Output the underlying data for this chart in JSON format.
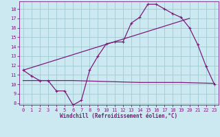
{
  "background_color": "#cce8f0",
  "grid_color": "#a0c8d0",
  "line_color": "#7b1a7b",
  "xlim": [
    -0.5,
    23.5
  ],
  "ylim": [
    7.8,
    18.8
  ],
  "yticks": [
    8,
    9,
    10,
    11,
    12,
    13,
    14,
    15,
    16,
    17,
    18
  ],
  "xticks": [
    0,
    1,
    2,
    3,
    4,
    5,
    6,
    7,
    8,
    9,
    10,
    11,
    12,
    13,
    14,
    15,
    16,
    17,
    18,
    19,
    20,
    21,
    22,
    23
  ],
  "xlabel": "Windchill (Refroidissement éolien,°C)",
  "tick_fontsize": 5.0,
  "xlabel_fontsize": 5.5,
  "line1_x": [
    0,
    1,
    2,
    3,
    4,
    5,
    6,
    7,
    8,
    9,
    10,
    11,
    12,
    13,
    14,
    15,
    16,
    17,
    18,
    19,
    20,
    21,
    22,
    23
  ],
  "line1_y": [
    11.5,
    10.9,
    10.4,
    10.4,
    9.3,
    9.3,
    7.8,
    8.3,
    11.5,
    13.0,
    14.3,
    14.5,
    14.5,
    16.5,
    17.1,
    18.5,
    18.5,
    18.0,
    17.5,
    17.1,
    16.0,
    14.2,
    11.9,
    10.0
  ],
  "line2_x": [
    0,
    1,
    2,
    3,
    4,
    5,
    6,
    14,
    19,
    23
  ],
  "line2_y": [
    10.4,
    10.4,
    10.4,
    10.4,
    10.4,
    10.4,
    10.4,
    10.2,
    10.2,
    10.1
  ],
  "line3_x": [
    0,
    20
  ],
  "line3_y": [
    11.5,
    17.0
  ]
}
